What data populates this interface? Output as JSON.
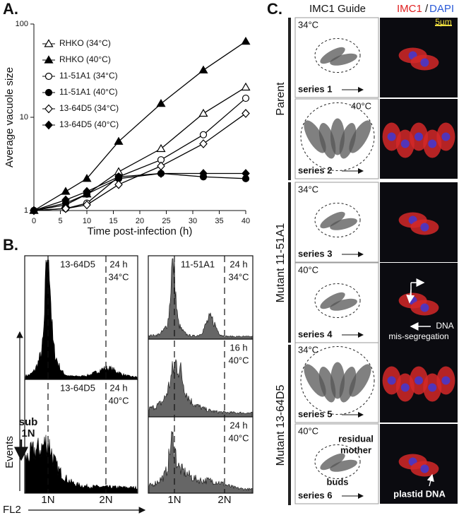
{
  "chart_data": {
    "type": "line",
    "ylabel": "Average vacuole size",
    "xlabel": "Time post-infection (h)",
    "x": [
      0,
      6,
      10,
      16,
      24,
      32,
      40
    ],
    "xlim": [
      0,
      40
    ],
    "xticks": [
      0,
      5,
      10,
      15,
      20,
      25,
      30,
      35,
      40
    ],
    "ylim": [
      1,
      100
    ],
    "yticks": [
      1,
      10,
      100
    ],
    "log_scale": true,
    "legend": "upper left",
    "series": [
      {
        "name": "RHKO (34°C)",
        "color": "#000000",
        "marker": "triangle",
        "filled": false,
        "values": [
          1,
          1.15,
          1.5,
          2.6,
          4.6,
          11,
          21
        ]
      },
      {
        "name": "RHKO (40°C)",
        "color": "#000000",
        "marker": "triangle",
        "filled": true,
        "values": [
          1,
          1.6,
          2.2,
          5.5,
          14,
          32,
          65
        ]
      },
      {
        "name": "11-51A1 (34°C)",
        "color": "#000000",
        "marker": "circle",
        "filled": false,
        "values": [
          1,
          1.05,
          1.2,
          2.3,
          3.5,
          6.5,
          16
        ]
      },
      {
        "name": "11-51A1 (40°C)",
        "color": "#000000",
        "marker": "circle",
        "filled": true,
        "values": [
          1,
          1.2,
          1.5,
          2.2,
          2.5,
          2.3,
          2.2
        ]
      },
      {
        "name": "13-64D5 (34°C)",
        "color": "#000000",
        "marker": "diamond",
        "filled": false,
        "values": [
          1,
          1.05,
          1.15,
          1.9,
          3,
          5.2,
          11
        ]
      },
      {
        "name": "13-64D5 (40°C)",
        "color": "#000000",
        "marker": "diamond",
        "filled": true,
        "values": [
          1,
          1.3,
          1.6,
          2.3,
          2.5,
          2.5,
          2.5
        ]
      }
    ]
  },
  "panel_labels": {
    "a": "A.",
    "b": "B.",
    "c": "C."
  },
  "panel_b": {
    "panels": [
      {
        "name": "13-64D5",
        "time": "24 h",
        "temp": "34°C"
      },
      {
        "name": "13-64D5",
        "time": "24 h",
        "temp": "40°C"
      },
      {
        "name": "11-51A1",
        "time": "24 h",
        "temp": "34°C"
      },
      {
        "time": "16 h",
        "temp": "40°C"
      },
      {
        "time": "24 h",
        "temp": "40°C"
      }
    ],
    "sub_label": [
      "sub",
      "1N"
    ],
    "y_label": "Events",
    "x_label": "FL2",
    "x_ticks": [
      "1N",
      "2N"
    ]
  },
  "panel_c": {
    "guide_title": "IMC1 Guide",
    "stain_title": {
      "imc1": "IMC1",
      "sep": "/",
      "dapi": "DAPI"
    },
    "scale_bar": "5µm",
    "groups": [
      "Parent",
      "Mutant 11-51A1",
      "Mutant 13-64D5"
    ],
    "rows": [
      {
        "temp": "34°C",
        "series": "series 1"
      },
      {
        "temp": "40°C",
        "series": "series 2"
      },
      {
        "temp": "34°C",
        "series": "series 3"
      },
      {
        "temp": "40°C",
        "series": "series 4"
      },
      {
        "temp": "34°C",
        "series": "series 5"
      },
      {
        "temp": "40°C",
        "series": "series 6"
      }
    ],
    "annotations": {
      "dna": [
        "DNA",
        "mis-segregation"
      ],
      "residual": [
        "residual",
        "mother"
      ],
      "buds": "buds",
      "plastid": "plastid DNA"
    }
  }
}
